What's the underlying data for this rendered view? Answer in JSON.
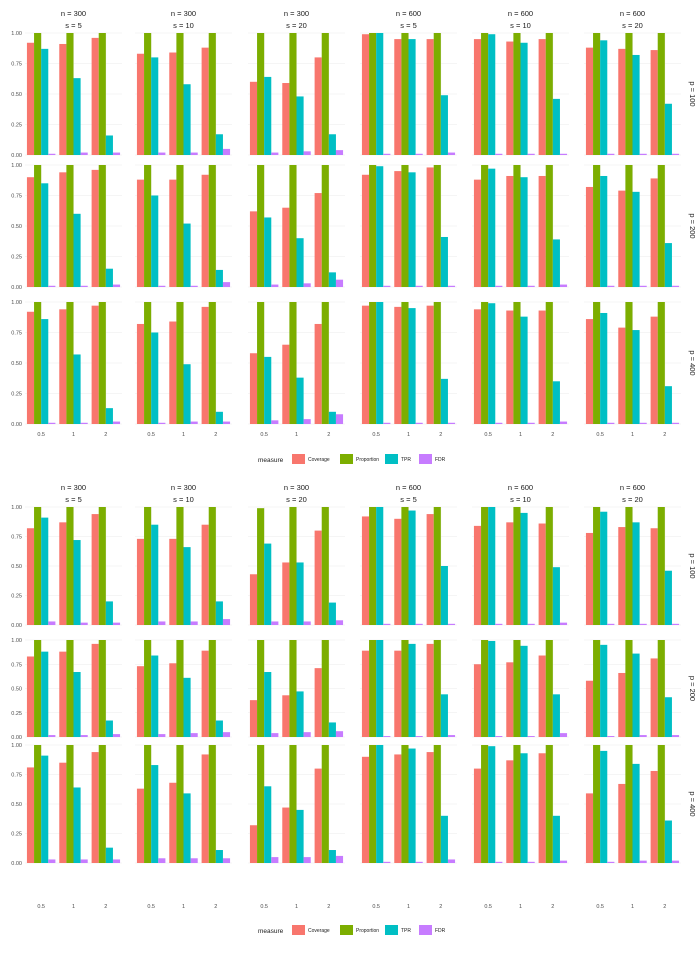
{
  "chart_data": [
    {
      "type": "bar",
      "facet_columns": [
        {
          "n": "n = 300",
          "s": "s = 5"
        },
        {
          "n": "n = 300",
          "s": "s = 10"
        },
        {
          "n": "n = 300",
          "s": "s = 20"
        },
        {
          "n": "n = 600",
          "s": "s = 5"
        },
        {
          "n": "n = 600",
          "s": "s = 10"
        },
        {
          "n": "n = 600",
          "s": "s = 20"
        }
      ],
      "facet_rows": [
        "p = 100",
        "p = 200",
        "p = 400"
      ],
      "categories": [
        "0.5",
        "1",
        "2"
      ],
      "measures": [
        "Coverage",
        "Proportion",
        "TPR",
        "FDR"
      ],
      "ylim": [
        0,
        1
      ],
      "yticks": [
        "0.00",
        "0.25",
        "0.50",
        "0.75",
        "1.00"
      ],
      "legend_title": "measure",
      "legend_position": "bottom",
      "panels": [
        [
          [
            [
              0.92,
              1.0,
              0.87,
              0.01
            ],
            [
              0.91,
              1.0,
              0.63,
              0.02
            ],
            [
              0.96,
              1.0,
              0.16,
              0.02
            ]
          ],
          [
            [
              0.83,
              1.0,
              0.8,
              0.02
            ],
            [
              0.84,
              1.0,
              0.58,
              0.02
            ],
            [
              0.88,
              1.0,
              0.17,
              0.05
            ]
          ],
          [
            [
              0.6,
              1.0,
              0.64,
              0.02
            ],
            [
              0.59,
              1.0,
              0.48,
              0.03
            ],
            [
              0.8,
              1.0,
              0.17,
              0.04
            ]
          ],
          [
            [
              0.99,
              1.0,
              1.0,
              0.01
            ],
            [
              0.95,
              1.0,
              0.95,
              0.01
            ],
            [
              0.95,
              1.0,
              0.49,
              0.02
            ]
          ],
          [
            [
              0.95,
              1.0,
              0.99,
              0.01
            ],
            [
              0.93,
              1.0,
              0.92,
              0.01
            ],
            [
              0.95,
              1.0,
              0.46,
              0.01
            ]
          ],
          [
            [
              0.88,
              1.0,
              0.94,
              0.01
            ],
            [
              0.87,
              1.0,
              0.82,
              0.01
            ],
            [
              0.86,
              1.0,
              0.42,
              0.01
            ]
          ]
        ],
        [
          [
            [
              0.9,
              1.0,
              0.85,
              0.01
            ],
            [
              0.94,
              1.0,
              0.6,
              0.01
            ],
            [
              0.96,
              1.0,
              0.15,
              0.02
            ]
          ],
          [
            [
              0.88,
              1.0,
              0.75,
              0.01
            ],
            [
              0.88,
              1.0,
              0.52,
              0.01
            ],
            [
              0.92,
              1.0,
              0.14,
              0.04
            ]
          ],
          [
            [
              0.62,
              1.0,
              0.57,
              0.02
            ],
            [
              0.65,
              1.0,
              0.4,
              0.03
            ],
            [
              0.77,
              1.0,
              0.12,
              0.06
            ]
          ],
          [
            [
              0.92,
              1.0,
              0.99,
              0.01
            ],
            [
              0.95,
              1.0,
              0.94,
              0.01
            ],
            [
              0.98,
              1.0,
              0.41,
              0.01
            ]
          ],
          [
            [
              0.88,
              1.0,
              0.97,
              0.01
            ],
            [
              0.91,
              1.0,
              0.9,
              0.01
            ],
            [
              0.91,
              1.0,
              0.39,
              0.02
            ]
          ],
          [
            [
              0.82,
              1.0,
              0.91,
              0.01
            ],
            [
              0.79,
              1.0,
              0.78,
              0.01
            ],
            [
              0.89,
              1.0,
              0.36,
              0.01
            ]
          ]
        ],
        [
          [
            [
              0.92,
              1.0,
              0.86,
              0.01
            ],
            [
              0.94,
              1.0,
              0.57,
              0.01
            ],
            [
              0.97,
              1.0,
              0.13,
              0.02
            ]
          ],
          [
            [
              0.82,
              1.0,
              0.75,
              0.01
            ],
            [
              0.84,
              1.0,
              0.49,
              0.02
            ],
            [
              0.96,
              1.0,
              0.1,
              0.02
            ]
          ],
          [
            [
              0.58,
              1.0,
              0.55,
              0.03
            ],
            [
              0.65,
              1.0,
              0.38,
              0.04
            ],
            [
              0.82,
              1.0,
              0.1,
              0.08
            ]
          ],
          [
            [
              0.97,
              1.0,
              1.0,
              0.01
            ],
            [
              0.96,
              1.0,
              0.95,
              0.01
            ],
            [
              0.97,
              1.0,
              0.37,
              0.01
            ]
          ],
          [
            [
              0.94,
              1.0,
              0.99,
              0.01
            ],
            [
              0.93,
              1.0,
              0.88,
              0.01
            ],
            [
              0.93,
              1.0,
              0.35,
              0.02
            ]
          ],
          [
            [
              0.86,
              1.0,
              0.91,
              0.01
            ],
            [
              0.79,
              1.0,
              0.77,
              0.01
            ],
            [
              0.88,
              1.0,
              0.31,
              0.01
            ]
          ]
        ]
      ]
    },
    {
      "type": "bar",
      "facet_columns": [
        {
          "n": "n = 300",
          "s": "s = 5"
        },
        {
          "n": "n = 300",
          "s": "s = 10"
        },
        {
          "n": "n = 300",
          "s": "s = 20"
        },
        {
          "n": "n = 600",
          "s": "s = 5"
        },
        {
          "n": "n = 600",
          "s": "s = 10"
        },
        {
          "n": "n = 600",
          "s": "s = 20"
        }
      ],
      "facet_rows": [
        "p = 100",
        "p = 200",
        "p = 400"
      ],
      "categories": [
        "0.5",
        "1",
        "2"
      ],
      "measures": [
        "Coverage",
        "Proportion",
        "TPR",
        "FDR"
      ],
      "ylim": [
        0,
        1
      ],
      "yticks": [
        "0.00",
        "0.25",
        "0.50",
        "0.75",
        "1.00"
      ],
      "legend_title": "measure",
      "legend_position": "bottom",
      "panels": [
        [
          [
            [
              0.82,
              1.0,
              0.91,
              0.03
            ],
            [
              0.87,
              1.0,
              0.72,
              0.02
            ],
            [
              0.94,
              1.0,
              0.2,
              0.02
            ]
          ],
          [
            [
              0.73,
              1.0,
              0.85,
              0.03
            ],
            [
              0.73,
              1.0,
              0.66,
              0.03
            ],
            [
              0.85,
              1.0,
              0.2,
              0.05
            ]
          ],
          [
            [
              0.43,
              0.99,
              0.69,
              0.03
            ],
            [
              0.53,
              1.0,
              0.53,
              0.03
            ],
            [
              0.8,
              1.0,
              0.19,
              0.04
            ]
          ],
          [
            [
              0.92,
              1.0,
              1.0,
              0.01
            ],
            [
              0.9,
              1.0,
              0.97,
              0.01
            ],
            [
              0.94,
              1.0,
              0.5,
              0.01
            ]
          ],
          [
            [
              0.84,
              1.0,
              1.0,
              0.01
            ],
            [
              0.87,
              1.0,
              0.95,
              0.01
            ],
            [
              0.86,
              1.0,
              0.49,
              0.02
            ]
          ],
          [
            [
              0.78,
              1.0,
              0.96,
              0.01
            ],
            [
              0.83,
              1.0,
              0.87,
              0.01
            ],
            [
              0.82,
              1.0,
              0.46,
              0.01
            ]
          ]
        ],
        [
          [
            [
              0.83,
              1.0,
              0.88,
              0.02
            ],
            [
              0.88,
              1.0,
              0.67,
              0.02
            ],
            [
              0.96,
              1.0,
              0.17,
              0.03
            ]
          ],
          [
            [
              0.73,
              1.0,
              0.84,
              0.03
            ],
            [
              0.76,
              1.0,
              0.61,
              0.04
            ],
            [
              0.89,
              1.0,
              0.17,
              0.05
            ]
          ],
          [
            [
              0.38,
              1.0,
              0.67,
              0.04
            ],
            [
              0.43,
              1.0,
              0.47,
              0.05
            ],
            [
              0.71,
              1.0,
              0.15,
              0.06
            ]
          ],
          [
            [
              0.89,
              1.0,
              1.0,
              0.01
            ],
            [
              0.89,
              1.0,
              0.96,
              0.01
            ],
            [
              0.96,
              1.0,
              0.44,
              0.02
            ]
          ],
          [
            [
              0.75,
              1.0,
              0.99,
              0.01
            ],
            [
              0.77,
              1.0,
              0.94,
              0.01
            ],
            [
              0.84,
              1.0,
              0.44,
              0.04
            ]
          ],
          [
            [
              0.58,
              1.0,
              0.95,
              0.01
            ],
            [
              0.66,
              1.0,
              0.86,
              0.02
            ],
            [
              0.81,
              1.0,
              0.41,
              0.02
            ]
          ]
        ],
        [
          [
            [
              0.81,
              1.0,
              0.91,
              0.03
            ],
            [
              0.85,
              1.0,
              0.64,
              0.03
            ],
            [
              0.94,
              1.0,
              0.13,
              0.03
            ]
          ],
          [
            [
              0.63,
              1.0,
              0.83,
              0.04
            ],
            [
              0.68,
              1.0,
              0.59,
              0.04
            ],
            [
              0.92,
              1.0,
              0.11,
              0.04
            ]
          ],
          [
            [
              0.32,
              1.0,
              0.65,
              0.05
            ],
            [
              0.47,
              1.0,
              0.45,
              0.05
            ],
            [
              0.8,
              1.0,
              0.11,
              0.06
            ]
          ],
          [
            [
              0.9,
              1.0,
              1.0,
              0.01
            ],
            [
              0.92,
              1.0,
              0.97,
              0.01
            ],
            [
              0.94,
              1.0,
              0.4,
              0.03
            ]
          ],
          [
            [
              0.8,
              1.0,
              0.99,
              0.01
            ],
            [
              0.87,
              1.0,
              0.93,
              0.01
            ],
            [
              0.93,
              1.0,
              0.4,
              0.02
            ]
          ],
          [
            [
              0.59,
              1.0,
              0.95,
              0.01
            ],
            [
              0.67,
              1.0,
              0.84,
              0.02
            ],
            [
              0.78,
              1.0,
              0.36,
              0.02
            ]
          ]
        ]
      ]
    }
  ],
  "colors": {
    "Coverage": "#F8766D",
    "Proportion": "#7CAE00",
    "TPR": "#00BFC4",
    "FDR": "#C77CFF",
    "grid": "#ebebeb",
    "text": "#1a1a1a",
    "tick": "#4d4d4d"
  }
}
